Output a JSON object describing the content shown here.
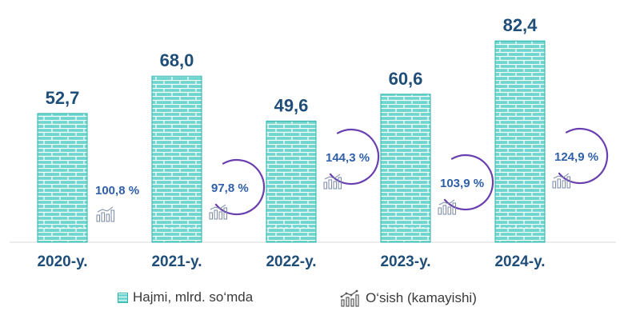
{
  "chart_data": {
    "type": "bar",
    "categories": [
      "2020-y.",
      "2021-y.",
      "2022-y.",
      "2023-y.",
      "2024-y."
    ],
    "series": [
      {
        "name": "Hajmi, mlrd. so‘mda",
        "values": [
          52.7,
          68.0,
          49.6,
          60.6,
          82.4
        ],
        "value_labels": [
          "52,7",
          "68,0",
          "49,6",
          "60,6",
          "82,4"
        ]
      },
      {
        "name": "O‘sish (kamayishi)",
        "values": [
          100.8,
          97.8,
          144.3,
          103.9,
          124.9
        ],
        "value_labels": [
          "100,8 %",
          "97,8 %",
          "144,3 %",
          "103,9 %",
          "124,9 %"
        ]
      }
    ],
    "ylim": [
      0,
      90
    ],
    "legend_position": "bottom",
    "grid": false,
    "colors": {
      "bar_fill": "#6fd6cf",
      "bar_stroke": "#2bb3ad",
      "value_text": "#1f4e79",
      "growth_text": "#2e5fa8",
      "arc": "#6a3fb0"
    }
  },
  "legend": {
    "bars_label": "Hajmi, mlrd. so‘mda",
    "growth_label": "O‘sish (kamayishi)",
    "bars_icon": "brick-swatch-icon",
    "growth_icon": "bar-growth-icon"
  }
}
